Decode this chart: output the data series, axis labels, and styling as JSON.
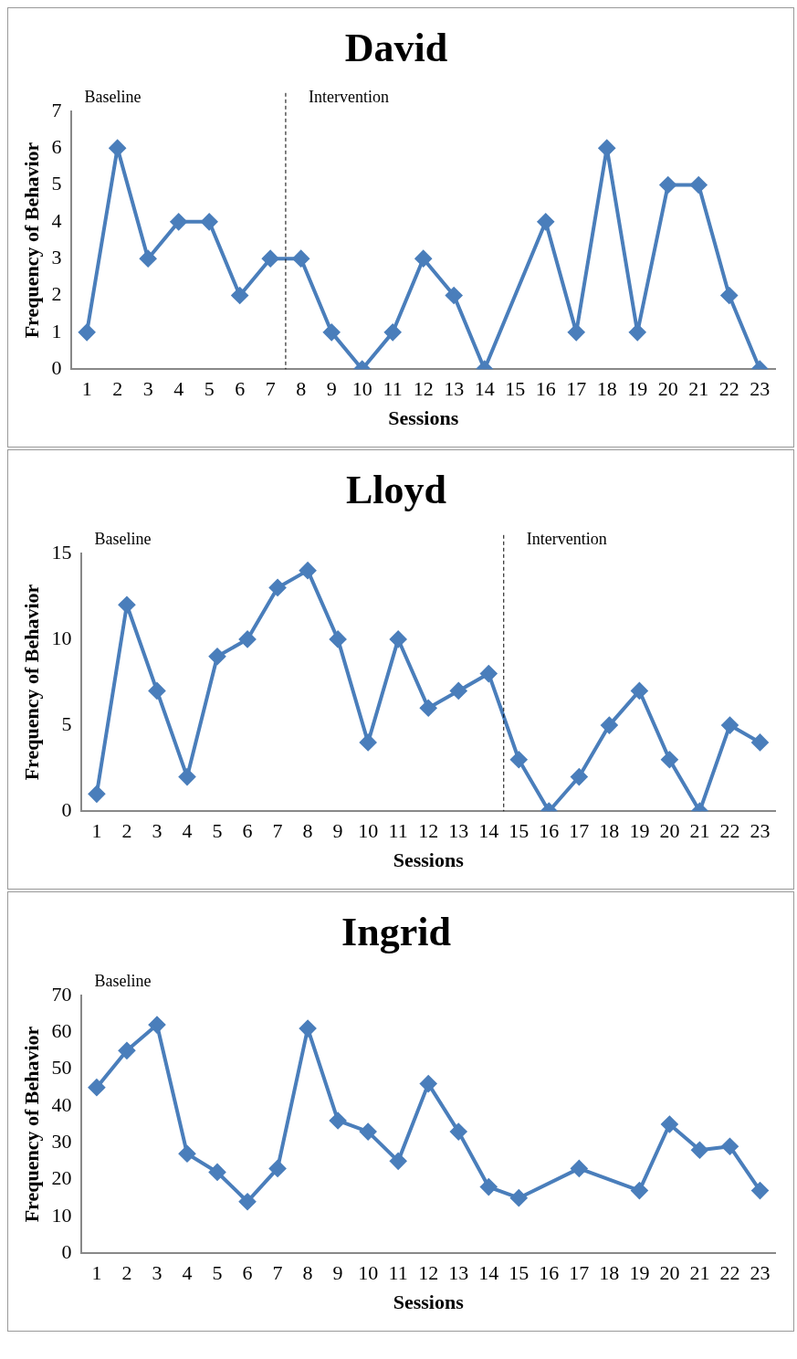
{
  "chart_data": [
    {
      "type": "line",
      "title": "David",
      "xlabel": "Sessions",
      "ylabel": "Frequency of Behavior",
      "annotations": [
        "Baseline",
        "Intervention"
      ],
      "x": [
        1,
        2,
        3,
        4,
        5,
        6,
        7,
        8,
        9,
        10,
        11,
        12,
        13,
        14,
        15,
        16,
        17,
        18,
        19,
        20,
        21,
        22,
        23
      ],
      "xlim": [
        0.5,
        23.5
      ],
      "xticks": [
        1,
        2,
        3,
        4,
        5,
        6,
        7,
        8,
        9,
        10,
        11,
        12,
        13,
        14,
        15,
        16,
        17,
        18,
        19,
        20,
        21,
        22,
        23
      ],
      "ylim": [
        0,
        7
      ],
      "yticks": [
        0,
        1,
        2,
        3,
        4,
        5,
        6,
        7
      ],
      "series": [
        {
          "color": "#4a7ebb",
          "values": [
            1,
            6,
            3,
            4,
            4,
            2,
            3,
            3,
            1,
            0,
            1,
            3,
            2,
            0,
            null,
            4,
            1,
            6,
            1,
            5,
            5,
            2,
            0
          ]
        }
      ],
      "ref_lines": [
        {
          "axis": "x",
          "value": 7.5,
          "line_style": "dashed",
          "color": "#000000"
        }
      ],
      "marker": "diamond",
      "grid": false,
      "legend": false
    },
    {
      "type": "line",
      "title": "Lloyd",
      "xlabel": "Sessions",
      "ylabel": "Frequency of Behavior",
      "annotations": [
        "Baseline",
        "Intervention"
      ],
      "x": [
        1,
        2,
        3,
        4,
        5,
        6,
        7,
        8,
        9,
        10,
        11,
        12,
        13,
        14,
        15,
        16,
        17,
        18,
        19,
        20,
        21,
        22,
        23
      ],
      "xlim": [
        0.5,
        23.5
      ],
      "xticks": [
        1,
        2,
        3,
        4,
        5,
        6,
        7,
        8,
        9,
        10,
        11,
        12,
        13,
        14,
        15,
        16,
        17,
        18,
        19,
        20,
        21,
        22,
        23
      ],
      "ylim": [
        0,
        15
      ],
      "yticks": [
        0,
        5,
        10,
        15
      ],
      "series": [
        {
          "color": "#4a7ebb",
          "values": [
            1,
            12,
            7,
            2,
            9,
            10,
            13,
            14,
            10,
            4,
            10,
            6,
            7,
            8,
            3,
            0,
            2,
            5,
            7,
            3,
            0,
            5,
            4
          ]
        }
      ],
      "ref_lines": [
        {
          "axis": "x",
          "value": 14.5,
          "line_style": "dashed",
          "color": "#000000"
        }
      ],
      "marker": "diamond",
      "grid": false,
      "legend": false
    },
    {
      "type": "line",
      "title": "Ingrid",
      "xlabel": "Sessions",
      "ylabel": "Frequency of Behavior",
      "annotations": [
        "Baseline"
      ],
      "x": [
        1,
        2,
        3,
        4,
        5,
        6,
        7,
        8,
        9,
        10,
        11,
        12,
        13,
        14,
        15,
        16,
        17,
        18,
        19,
        20,
        21,
        22,
        23
      ],
      "xlim": [
        0.5,
        23.5
      ],
      "xticks": [
        1,
        2,
        3,
        4,
        5,
        6,
        7,
        8,
        9,
        10,
        11,
        12,
        13,
        14,
        15,
        16,
        17,
        18,
        19,
        20,
        21,
        22,
        23
      ],
      "ylim": [
        0,
        70
      ],
      "yticks": [
        0,
        10,
        20,
        30,
        40,
        50,
        60,
        70
      ],
      "series": [
        {
          "color": "#4a7ebb",
          "values": [
            45,
            55,
            62,
            27,
            22,
            14,
            23,
            61,
            36,
            33,
            25,
            46,
            33,
            18,
            15,
            null,
            23,
            null,
            17,
            35,
            28,
            29,
            17
          ]
        }
      ],
      "marker": "diamond",
      "grid": false,
      "legend": false
    }
  ]
}
